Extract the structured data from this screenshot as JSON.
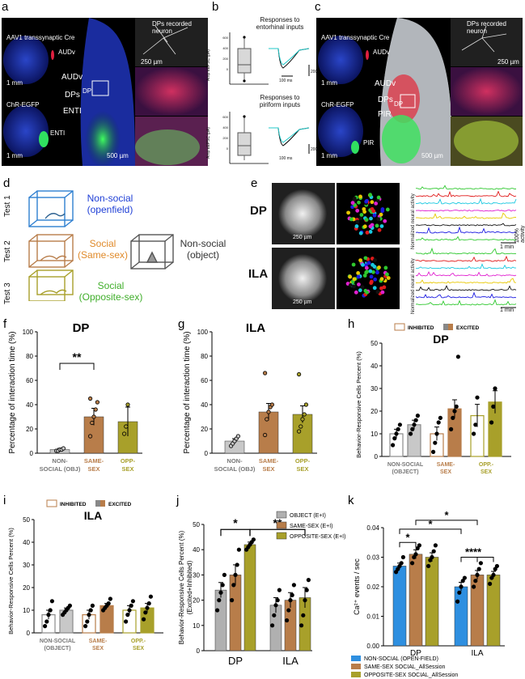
{
  "a": {
    "label": "a",
    "title_top": "AAV1 transsynaptic Cre",
    "label_audv_small": "AUDv",
    "scale_top": "1 mm",
    "title_bottom": "ChR-EGFP",
    "label_enti_small": "ENTI",
    "scale_bottom": "1 mm",
    "route_audv": "AUDv",
    "route_dps": "DPs",
    "route_enti": "ENTI",
    "dp_label": "DP",
    "scale_mid": "500 µm",
    "recorded": "DPs recorded neuron",
    "scale_right": "250 µm"
  },
  "b": {
    "label": "b",
    "title_top": "Responses to entorhinal inputs",
    "title_bottom": "Responses to piriform inputs",
    "yaxis": "Amp eEPSC (pA)",
    "trace_time": "100 ms",
    "trace_amp": "200 pA",
    "ticks_top": [
      "0",
      "200",
      "400",
      "600"
    ],
    "ticks_bottom": [
      "0",
      "200",
      "400",
      "600"
    ]
  },
  "c": {
    "label": "c",
    "title_top": "AAV1 transsynaptic Cre",
    "label_audv_small": "AUDv",
    "scale_top": "1 mm",
    "title_bottom": "ChR-EGFP",
    "label_pir_small": "PIR",
    "scale_bottom": "1 mm",
    "route_audv": "AUDv",
    "route_dps": "DPs",
    "route_pir": "PIR",
    "dp_label": "DP",
    "scale_mid": "500 µm",
    "recorded": "DPs recorded neuron",
    "scale_right": "250 µm"
  },
  "d": {
    "label": "d",
    "test1": "Test 1",
    "test2": "Test 2",
    "test3": "Test 3",
    "t1_line1": "Non-social",
    "t1_line2": "(openfield)",
    "t2_line1": "Social",
    "t2_line2": "(Same-sex)",
    "obj_line1": "Non-social",
    "obj_line2": "(object)",
    "t3_line1": "Social",
    "t3_line2": "(Opposite-sex)",
    "colors": {
      "blue": "#1f3fd6",
      "orange": "#e08a2a",
      "gray": "#555555",
      "green": "#3fae2a"
    }
  },
  "e": {
    "label": "e",
    "dp": "DP",
    "ila": "ILA",
    "scale1": "250 µm",
    "scale2": "250 µm",
    "yaxis": "Normalized neural activity",
    "activity": "100% activity",
    "time": "1 min",
    "trace_colors": [
      "#2ec82e",
      "#e01a1a",
      "#18c8e0",
      "#e020d0",
      "#e8c800",
      "#111111",
      "#1a1ae0",
      "#2ec82e"
    ]
  },
  "chart_data": [
    {
      "panel": "f",
      "type": "bar",
      "title": "DP",
      "ylabel": "Percentage of interaction time (%)",
      "ylim": [
        0,
        100
      ],
      "yticks": [
        0,
        20,
        40,
        60,
        80,
        100
      ],
      "categories": [
        "NON-SOCIAL (OBJ)",
        "SAME-SEX",
        "OPP-SEX"
      ],
      "cat_lines": [
        [
          "NON-",
          "SOCIAL (OBJ)"
        ],
        [
          "SAME-",
          "SEX"
        ],
        [
          "OPP-",
          "SEX"
        ]
      ],
      "values": [
        3,
        30,
        26
      ],
      "errors": [
        1,
        7,
        12
      ],
      "points": [
        [
          2,
          2,
          3,
          3,
          4
        ],
        [
          14,
          25,
          30,
          36,
          42,
          45
        ],
        [
          16,
          22,
          40
        ]
      ],
      "colors": [
        "#c8c8c8",
        "#b87d4a",
        "#a8a02a"
      ],
      "significance": [
        {
          "from": 0,
          "to": 1,
          "label": "**"
        }
      ]
    },
    {
      "panel": "g",
      "type": "bar",
      "title": "ILA",
      "ylabel": "Percentage of interaction time (%)",
      "ylim": [
        0,
        100
      ],
      "yticks": [
        0,
        20,
        40,
        60,
        80,
        100
      ],
      "categories": [
        "NON-SOCIAL (OBJ)",
        "SAME-SEX",
        "OPP-SEX"
      ],
      "cat_lines": [
        [
          "NON-",
          "SOCIAL (OBJ)"
        ],
        [
          "SAME-",
          "SEX"
        ],
        [
          "OPP-",
          "SEX"
        ]
      ],
      "values": [
        10,
        34,
        32
      ],
      "errors": [
        2,
        7,
        7
      ],
      "points": [
        [
          6,
          8,
          10,
          12,
          14
        ],
        [
          15,
          28,
          34,
          38,
          40,
          66
        ],
        [
          18,
          22,
          28,
          32,
          40,
          65
        ]
      ],
      "colors": [
        "#c8c8c8",
        "#b87d4a",
        "#a8a02a"
      ],
      "significance": []
    },
    {
      "panel": "h",
      "type": "bar",
      "title": "DP",
      "ylabel": "Behavior-Responsive Cells Percent (%)",
      "ylim": [
        0,
        50
      ],
      "yticks": [
        0,
        10,
        20,
        30,
        40,
        50
      ],
      "legend": [
        "INHIBITED",
        "EXCITED"
      ],
      "categories": [
        "NON-SOCIAL (OBJECT)",
        "SAME-SEX",
        "OPP.-SEX"
      ],
      "cat_lines": [
        [
          "NON-SOCIAL",
          "(OBJECT)"
        ],
        [
          "SAME-",
          "SEX"
        ],
        [
          "OPP.-",
          "SEX"
        ]
      ],
      "bars": [
        {
          "value": 10,
          "error": 2,
          "points": [
            5,
            8,
            10,
            12,
            14
          ],
          "color": "#ffffff",
          "edge": "#8a8a8a",
          "pattern": false
        },
        {
          "value": 14,
          "error": 2,
          "points": [
            10,
            12,
            14,
            16,
            18
          ],
          "color": "#c8c8c8",
          "edge": "#8a8a8a",
          "pattern": true
        },
        {
          "value": 10,
          "error": 3,
          "points": [
            2,
            6,
            10,
            15,
            17
          ],
          "color": "#ffffff",
          "edge": "#b87d4a",
          "pattern": false
        },
        {
          "value": 21,
          "error": 4,
          "points": [
            12,
            17,
            20,
            22,
            44
          ],
          "color": "#b87d4a",
          "edge": "#b87d4a",
          "pattern": true
        },
        {
          "value": 18,
          "error": 5,
          "points": [
            10,
            14,
            26
          ],
          "color": "#ffffff",
          "edge": "#a8a02a",
          "pattern": false
        },
        {
          "value": 24,
          "error": 5,
          "points": [
            15,
            22,
            30
          ],
          "color": "#a8a02a",
          "edge": "#a8a02a",
          "pattern": true
        }
      ]
    },
    {
      "panel": "i",
      "type": "bar",
      "title": "ILA",
      "ylabel": "Behavior-Responsive Cells Percent (%)",
      "ylim": [
        0,
        50
      ],
      "yticks": [
        0,
        10,
        20,
        30,
        40,
        50
      ],
      "legend": [
        "INHIBITED",
        "EXCITED"
      ],
      "categories": [
        "NON-SOCIAL (OBJECT)",
        "SAME-SEX",
        "OPP.-SEX"
      ],
      "cat_lines": [
        [
          "NON-SOCIAL",
          "(OBJECT)"
        ],
        [
          "SAME-",
          "SEX"
        ],
        [
          "OPP.-",
          "SEX"
        ]
      ],
      "bars": [
        {
          "value": 8,
          "error": 2,
          "points": [
            3,
            5,
            8,
            10,
            14
          ],
          "color": "#ffffff",
          "edge": "#8a8a8a",
          "pattern": false
        },
        {
          "value": 10,
          "error": 1,
          "points": [
            8,
            9,
            10,
            11,
            12
          ],
          "color": "#c8c8c8",
          "edge": "#8a8a8a",
          "pattern": true
        },
        {
          "value": 8,
          "error": 2,
          "points": [
            3,
            5,
            8,
            10,
            12
          ],
          "color": "#ffffff",
          "edge": "#b87d4a",
          "pattern": false
        },
        {
          "value": 12,
          "error": 1,
          "points": [
            10,
            11,
            12,
            13,
            15
          ],
          "color": "#b87d4a",
          "edge": "#b87d4a",
          "pattern": true
        },
        {
          "value": 10,
          "error": 2,
          "points": [
            5,
            8,
            10,
            12,
            14
          ],
          "color": "#ffffff",
          "edge": "#a8a02a",
          "pattern": false
        },
        {
          "value": 11,
          "error": 2,
          "points": [
            6,
            9,
            11,
            13,
            16
          ],
          "color": "#a8a02a",
          "edge": "#a8a02a",
          "pattern": true
        }
      ]
    },
    {
      "panel": "j",
      "type": "bar",
      "ylabel": "Behavior-Responsive Cells Percent (%) (Excited+Inhibited)",
      "ylabel_lines": [
        "Behavior-Responsive Cells Percent (%)",
        "(Excited+Inhibited)"
      ],
      "ylim": [
        0,
        50
      ],
      "yticks": [
        0,
        10,
        20,
        30,
        40,
        50
      ],
      "groups": [
        "DP",
        "ILA"
      ],
      "series": [
        {
          "name": "OBJECT (E+I)",
          "values": [
            24,
            18
          ],
          "errors": [
            3,
            3
          ],
          "points": [
            [
              16,
              20,
              23,
              26,
              30
            ],
            [
              10,
              14,
              18,
              20,
              24
            ]
          ],
          "color": "#b0b0b0"
        },
        {
          "name": "SAME-SEX (E+I)",
          "values": [
            30,
            20
          ],
          "errors": [
            4,
            3
          ],
          "points": [
            [
              20,
              26,
              30,
              34,
              40
            ],
            [
              12,
              16,
              20,
              22,
              26
            ]
          ],
          "color": "#b87d4a"
        },
        {
          "name": "OPPOSITE-SEX (E+I)",
          "values": [
            42,
            21
          ],
          "errors": [
            1,
            4
          ],
          "points": [
            [
              40,
              41,
              42,
              43,
              44
            ],
            [
              10,
              14,
              20,
              24,
              28
            ]
          ],
          "color": "#a8a02a"
        }
      ],
      "significance": [
        {
          "from": [
            0,
            0
          ],
          "to": [
            0,
            2
          ],
          "label": "*"
        },
        {
          "from": [
            0,
            2
          ],
          "to": [
            1,
            2
          ],
          "label": "**"
        }
      ]
    },
    {
      "panel": "k",
      "type": "bar",
      "ylabel": "Ca²⁺ events / sec",
      "ylim": [
        0,
        0.04
      ],
      "yticks": [
        "0.00",
        "0.01",
        "0.02",
        "0.03",
        "0.04"
      ],
      "groups": [
        "DP",
        "ILA"
      ],
      "series": [
        {
          "name": "NON-SOCIAL (OPEN-FIELD)",
          "values": [
            0.027,
            0.02
          ],
          "errors": [
            0.001,
            0.0015
          ],
          "points": [
            [
              0.025,
              0.026,
              0.027,
              0.028,
              0.03
            ],
            [
              0.015,
              0.018,
              0.02,
              0.022,
              0.023
            ]
          ],
          "color": "#2e8fe0"
        },
        {
          "name": "SAME-SEX SOCIAL_AllSession",
          "values": [
            0.031,
            0.024
          ],
          "errors": [
            0.0015,
            0.0015
          ],
          "points": [
            [
              0.028,
              0.03,
              0.031,
              0.033,
              0.034
            ],
            [
              0.02,
              0.022,
              0.024,
              0.026,
              0.028
            ]
          ],
          "color": "#b87d4a"
        },
        {
          "name": "OPPOSITE-SEX SOCIAL_AllSession",
          "values": [
            0.03,
            0.024
          ],
          "errors": [
            0.0015,
            0.0012
          ],
          "points": [
            [
              0.027,
              0.029,
              0.03,
              0.032,
              0.034
            ],
            [
              0.021,
              0.023,
              0.024,
              0.026,
              0.027
            ]
          ],
          "color": "#a8a02a"
        }
      ],
      "significance": [
        {
          "from": [
            0,
            0
          ],
          "to": [
            0,
            1
          ],
          "label": "*"
        },
        {
          "from": [
            1,
            0
          ],
          "to": [
            1,
            1
          ],
          "label": "**"
        },
        {
          "from": [
            1,
            0
          ],
          "to": [
            1,
            2
          ],
          "label": "**"
        },
        {
          "from": [
            0,
            0
          ],
          "to": [
            1,
            0
          ],
          "label": "*"
        },
        {
          "from": [
            0,
            1
          ],
          "to": [
            1,
            1
          ],
          "label": "*"
        }
      ]
    }
  ],
  "panel_labels": {
    "f": "f",
    "g": "g",
    "h": "h",
    "i": "i",
    "j": "j",
    "k": "k"
  }
}
